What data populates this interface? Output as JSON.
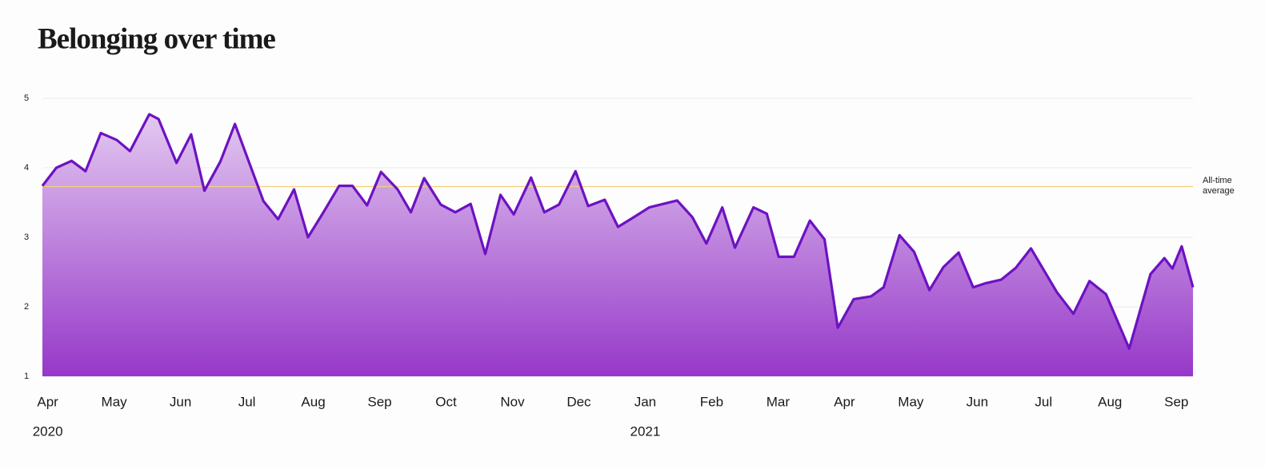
{
  "chart_data": {
    "type": "area",
    "title": "Belonging over time",
    "color": "#6d12c2",
    "grid": true,
    "ylim": [
      1,
      5
    ],
    "yticks": [
      1,
      2,
      3,
      4,
      5
    ],
    "xlim": [
      -0.08,
      17.25
    ],
    "xticks": [
      {
        "value": 0,
        "label": "Apr"
      },
      {
        "value": 1,
        "label": "May"
      },
      {
        "value": 2,
        "label": "Jun"
      },
      {
        "value": 3,
        "label": "Jul"
      },
      {
        "value": 4,
        "label": "Aug"
      },
      {
        "value": 5,
        "label": "Sep"
      },
      {
        "value": 6,
        "label": "Oct"
      },
      {
        "value": 7,
        "label": "Nov"
      },
      {
        "value": 8,
        "label": "Dec"
      },
      {
        "value": 9,
        "label": "Jan"
      },
      {
        "value": 10,
        "label": "Feb"
      },
      {
        "value": 11,
        "label": "Mar"
      },
      {
        "value": 12,
        "label": "Apr"
      },
      {
        "value": 13,
        "label": "May"
      },
      {
        "value": 14,
        "label": "Jun"
      },
      {
        "value": 15,
        "label": "Jul"
      },
      {
        "value": 16,
        "label": "Aug"
      },
      {
        "value": 17,
        "label": "Sep"
      }
    ],
    "year_labels": [
      {
        "value": 0,
        "label": "2020"
      },
      {
        "value": 9,
        "label": "2021"
      }
    ],
    "reference_line": {
      "value": 3.73,
      "label": "All-time average",
      "color": "#f3cf7a"
    },
    "x": [
      -0.08,
      0.13,
      0.36,
      0.57,
      0.8,
      1.04,
      1.24,
      1.53,
      1.67,
      1.94,
      2.16,
      2.36,
      2.6,
      2.82,
      3.04,
      3.25,
      3.47,
      3.71,
      3.92,
      4.14,
      4.39,
      4.59,
      4.81,
      5.02,
      5.27,
      5.47,
      5.67,
      5.92,
      6.14,
      6.37,
      6.59,
      6.82,
      7.02,
      7.28,
      7.48,
      7.7,
      7.95,
      8.14,
      8.39,
      8.59,
      8.83,
      9.06,
      9.48,
      9.71,
      9.92,
      10.16,
      10.35,
      10.63,
      10.83,
      11.01,
      11.24,
      11.48,
      11.7,
      11.9,
      12.14,
      12.4,
      12.59,
      12.83,
      13.05,
      13.28,
      13.49,
      13.72,
      13.94,
      14.13,
      14.36,
      14.58,
      14.81,
      15.2,
      15.45,
      15.69,
      15.94,
      16.29,
      16.61,
      16.82,
      16.94,
      17.08,
      17.25
    ],
    "values": [
      3.74,
      4.0,
      4.1,
      3.95,
      4.5,
      4.4,
      4.24,
      4.77,
      4.7,
      4.07,
      4.48,
      3.67,
      4.09,
      4.63,
      4.06,
      3.52,
      3.26,
      3.69,
      3.0,
      3.34,
      3.74,
      3.74,
      3.46,
      3.94,
      3.69,
      3.36,
      3.85,
      3.47,
      3.36,
      3.48,
      2.76,
      3.61,
      3.33,
      3.86,
      3.36,
      3.47,
      3.95,
      3.45,
      3.54,
      3.15,
      3.29,
      3.43,
      3.53,
      3.29,
      2.91,
      3.43,
      2.85,
      3.43,
      3.34,
      2.72,
      2.72,
      3.24,
      2.97,
      1.7,
      2.11,
      2.15,
      2.28,
      3.03,
      2.79,
      2.24,
      2.57,
      2.78,
      2.28,
      2.34,
      2.39,
      2.56,
      2.84,
      2.21,
      1.9,
      2.37,
      2.18,
      1.4,
      2.47,
      2.7,
      2.55,
      2.87,
      2.28
    ]
  }
}
